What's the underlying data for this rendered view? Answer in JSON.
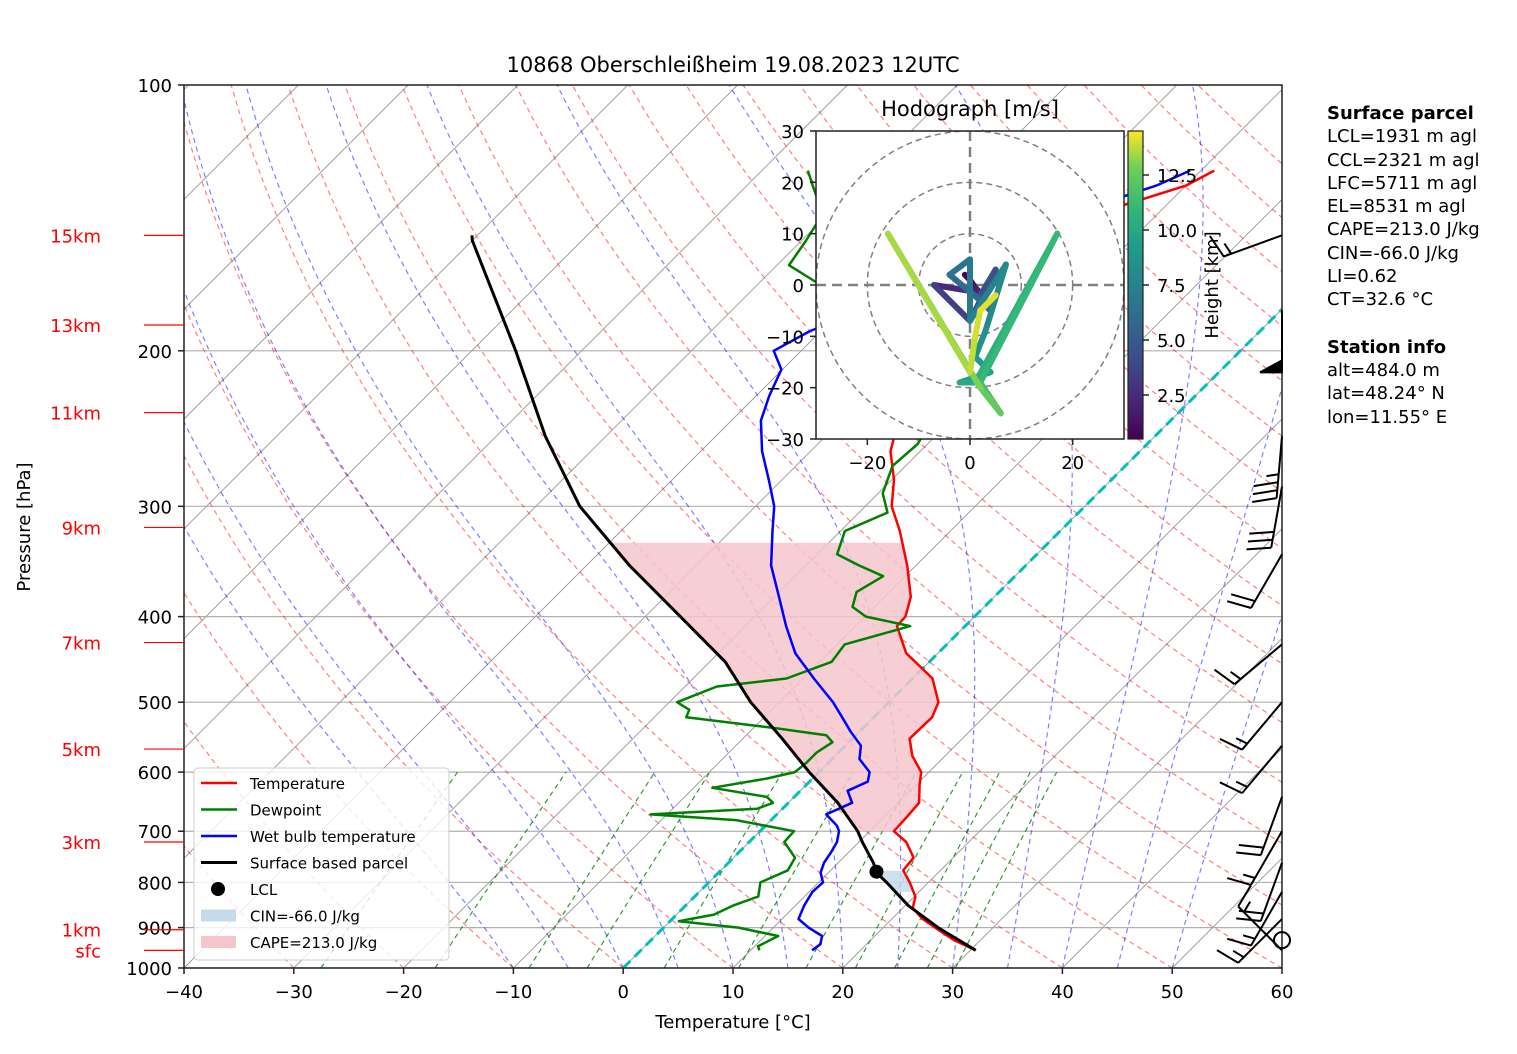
{
  "chart_data": {
    "type": "skew-t",
    "title": "10868 Oberschleißheim 19.08.2023 12UTC",
    "xlabel": "Temperature [°C]",
    "ylabel": "Pressure [hPa]",
    "xlim": [
      -40,
      60
    ],
    "ylim": [
      1000,
      100
    ],
    "xticks": [
      -40,
      -30,
      -20,
      -10,
      0,
      10,
      20,
      30,
      40,
      50,
      60
    ],
    "yticks": [
      100,
      200,
      300,
      400,
      500,
      600,
      700,
      800,
      900,
      1000
    ],
    "height_marks": [
      {
        "label": "15km",
        "p": 148
      },
      {
        "label": "13km",
        "p": 187
      },
      {
        "label": "11km",
        "p": 235
      },
      {
        "label": "9km",
        "p": 317
      },
      {
        "label": "7km",
        "p": 428
      },
      {
        "label": "5km",
        "p": 565
      },
      {
        "label": "3km",
        "p": 720
      },
      {
        "label": "1km",
        "p": 905
      },
      {
        "label": "sfc",
        "p": 955
      }
    ],
    "legend": {
      "placement": "lower-left",
      "entries": [
        {
          "label": "Temperature",
          "color": "#ff0000",
          "kind": "line"
        },
        {
          "label": "Dewpoint",
          "color": "#008000",
          "kind": "line"
        },
        {
          "label": "Wet bulb temperature",
          "color": "#0000ff",
          "kind": "line"
        },
        {
          "label": "Surface based parcel",
          "color": "#000000",
          "kind": "line"
        },
        {
          "label": "LCL",
          "color": "#000000",
          "kind": "dot"
        },
        {
          "label": "CIN=-66.0 J/kg",
          "color": "#c6dbe9",
          "kind": "patch"
        },
        {
          "label": "CAPE=213.0 J/kg",
          "color": "#f4c6cc",
          "kind": "patch"
        }
      ]
    },
    "series": [
      {
        "name": "Temperature",
        "color": "#ff0000",
        "points": [
          [
            955,
            30.5
          ],
          [
            930,
            27.6
          ],
          [
            905,
            25.2
          ],
          [
            880,
            22.8
          ],
          [
            855,
            20.9
          ],
          [
            830,
            20.1
          ],
          [
            800,
            18.3
          ],
          [
            775,
            16.6
          ],
          [
            750,
            16.4
          ],
          [
            720,
            14.3
          ],
          [
            700,
            12.2
          ],
          [
            680,
            12.1
          ],
          [
            650,
            11.9
          ],
          [
            620,
            10.3
          ],
          [
            600,
            9.3
          ],
          [
            575,
            7.0
          ],
          [
            550,
            5.2
          ],
          [
            520,
            5.3
          ],
          [
            500,
            4.5
          ],
          [
            470,
            1.8
          ],
          [
            440,
            -2.9
          ],
          [
            410,
            -6.2
          ],
          [
            400,
            -6.3
          ],
          [
            380,
            -7.6
          ],
          [
            350,
            -10.8
          ],
          [
            320,
            -14.6
          ],
          [
            300,
            -17.6
          ],
          [
            280,
            -19.8
          ],
          [
            260,
            -22.7
          ],
          [
            240,
            -24.8
          ],
          [
            225,
            -26.7
          ],
          [
            210,
            -29.7
          ],
          [
            200,
            -33.0
          ],
          [
            190,
            -35.7
          ],
          [
            180,
            -35.5
          ],
          [
            170,
            -36.0
          ],
          [
            160,
            -34.6
          ],
          [
            155,
            -31.0
          ],
          [
            150,
            -28.5
          ],
          [
            140,
            -25.7
          ],
          [
            130,
            -20.0
          ],
          [
            125,
            -18.8
          ]
        ]
      },
      {
        "name": "Dewpoint",
        "color": "#008000",
        "points": [
          [
            955,
            10.8
          ],
          [
            945,
            10.3
          ],
          [
            920,
            11.2
          ],
          [
            900,
            6.8
          ],
          [
            885,
            0.8
          ],
          [
            870,
            3.4
          ],
          [
            850,
            4.3
          ],
          [
            830,
            5.8
          ],
          [
            800,
            4.7
          ],
          [
            775,
            6.1
          ],
          [
            750,
            5.6
          ],
          [
            720,
            3.2
          ],
          [
            700,
            3.1
          ],
          [
            680,
            -3.2
          ],
          [
            670,
            -11.5
          ],
          [
            660,
            -2.3
          ],
          [
            650,
            -1.4
          ],
          [
            640,
            -2.5
          ],
          [
            625,
            -8.3
          ],
          [
            610,
            -4.1
          ],
          [
            600,
            -2.2
          ],
          [
            585,
            -2.0
          ],
          [
            570,
            -2.0
          ],
          [
            555,
            -1.5
          ],
          [
            545,
            -2.7
          ],
          [
            535,
            -8.0
          ],
          [
            520,
            -17.1
          ],
          [
            510,
            -17.5
          ],
          [
            500,
            -19.3
          ],
          [
            480,
            -17.1
          ],
          [
            470,
            -11.5
          ],
          [
            450,
            -8.9
          ],
          [
            430,
            -9.3
          ],
          [
            410,
            -5.0
          ],
          [
            400,
            -9.9
          ],
          [
            390,
            -12.0
          ],
          [
            375,
            -13.0
          ],
          [
            360,
            -12.0
          ],
          [
            350,
            -15.2
          ],
          [
            340,
            -18.2
          ],
          [
            320,
            -19.6
          ],
          [
            305,
            -17.4
          ],
          [
            290,
            -19.6
          ],
          [
            270,
            -21.2
          ],
          [
            255,
            -20.9
          ],
          [
            240,
            -21.8
          ],
          [
            230,
            -26.6
          ],
          [
            210,
            -27.6
          ],
          [
            200,
            -30.6
          ],
          [
            190,
            -30.1
          ],
          [
            180,
            -36.6
          ],
          [
            170,
            -43.4
          ],
          [
            160,
            -48.9
          ],
          [
            150,
            -49.6
          ],
          [
            140,
            -50.5
          ],
          [
            130,
            -54.0
          ],
          [
            125,
            -55.8
          ]
        ]
      },
      {
        "name": "Wet bulb temperature",
        "color": "#0000ff",
        "points": [
          [
            955,
            15.6
          ],
          [
            940,
            15.8
          ],
          [
            920,
            15.2
          ],
          [
            900,
            13.2
          ],
          [
            880,
            11.5
          ],
          [
            850,
            10.8
          ],
          [
            820,
            10.3
          ],
          [
            800,
            10.4
          ],
          [
            780,
            9.3
          ],
          [
            760,
            8.7
          ],
          [
            740,
            8.4
          ],
          [
            720,
            8.0
          ],
          [
            700,
            7.2
          ],
          [
            690,
            6.5
          ],
          [
            670,
            4.5
          ],
          [
            650,
            5.8
          ],
          [
            630,
            4.3
          ],
          [
            615,
            5.3
          ],
          [
            600,
            4.6
          ],
          [
            580,
            2.5
          ],
          [
            560,
            1.4
          ],
          [
            540,
            -0.8
          ],
          [
            520,
            -2.9
          ],
          [
            500,
            -5.1
          ],
          [
            470,
            -9.0
          ],
          [
            440,
            -13.0
          ],
          [
            410,
            -16.3
          ],
          [
            380,
            -19.6
          ],
          [
            350,
            -23.2
          ],
          [
            320,
            -26.2
          ],
          [
            300,
            -28.3
          ],
          [
            280,
            -31.2
          ],
          [
            260,
            -34.4
          ],
          [
            240,
            -37.3
          ],
          [
            225,
            -38.8
          ],
          [
            210,
            -40.1
          ],
          [
            200,
            -42.5
          ],
          [
            190,
            -41.0
          ],
          [
            180,
            -38.2
          ],
          [
            170,
            -37.1
          ],
          [
            160,
            -37.5
          ],
          [
            155,
            -33.5
          ],
          [
            150,
            -30.8
          ],
          [
            140,
            -28.0
          ],
          [
            130,
            -22.7
          ],
          [
            125,
            -21.0
          ]
        ]
      },
      {
        "name": "Surface based parcel",
        "color": "#000000",
        "points": [
          [
            955,
            30.5
          ],
          [
            900,
            25.0
          ],
          [
            850,
            20.3
          ],
          [
            800,
            16.2
          ],
          [
            780,
            14.4
          ],
          [
            760,
            13.2
          ],
          [
            720,
            10.3
          ],
          [
            700,
            8.9
          ],
          [
            650,
            4.5
          ],
          [
            600,
            -0.9
          ],
          [
            550,
            -6.4
          ],
          [
            500,
            -12.6
          ],
          [
            450,
            -18.6
          ],
          [
            400,
            -26.8
          ],
          [
            350,
            -36.1
          ],
          [
            300,
            -46.0
          ],
          [
            250,
            -55.5
          ],
          [
            200,
            -66.0
          ],
          [
            150,
            -80.0
          ],
          [
            148,
            -80.5
          ]
        ]
      }
    ],
    "lcl": {
      "p": 778,
      "t": 14.3
    },
    "cape": {
      "value": 213.0,
      "unit": "J/kg"
    },
    "cin": {
      "value": -66.0,
      "unit": "J/kg"
    },
    "dashed_cyan_line": {
      "from": [
        1000,
        0
      ],
      "to": [
        148,
        0
      ],
      "note": "0 °C isotherm"
    },
    "wind_barbs": [
      {
        "p": 955,
        "speed_kt": 15,
        "dir": 315
      },
      {
        "p": 930,
        "speed_kt": 0,
        "dir": 0
      },
      {
        "p": 880,
        "speed_kt": 15,
        "dir": 225
      },
      {
        "p": 820,
        "speed_kt": 15,
        "dir": 210
      },
      {
        "p": 760,
        "speed_kt": 20,
        "dir": 200
      },
      {
        "p": 700,
        "speed_kt": 15,
        "dir": 210
      },
      {
        "p": 640,
        "speed_kt": 20,
        "dir": 200
      },
      {
        "p": 560,
        "speed_kt": 15,
        "dir": 220
      },
      {
        "p": 500,
        "speed_kt": 15,
        "dir": 220
      },
      {
        "p": 430,
        "speed_kt": 15,
        "dir": 230
      },
      {
        "p": 340,
        "speed_kt": 20,
        "dir": 210
      },
      {
        "p": 285,
        "speed_kt": 30,
        "dir": 190
      },
      {
        "p": 250,
        "speed_kt": 35,
        "dir": 185
      },
      {
        "p": 180,
        "speed_kt": 50,
        "dir": 180
      },
      {
        "p": 148,
        "speed_kt": 15,
        "dir": 250
      }
    ],
    "hodograph": {
      "title": "Hodograph [m/s]",
      "xlim": [
        -30,
        30
      ],
      "ylim": [
        -30,
        30
      ],
      "xticks": [
        -20,
        0,
        20
      ],
      "yticks": [
        -30,
        -20,
        -10,
        0,
        10,
        20,
        30
      ],
      "rings": [
        10,
        20,
        30
      ],
      "colorbar": {
        "label": "Height [km]",
        "ticks": [
          2.5,
          5.0,
          7.5,
          10.0,
          12.5
        ],
        "range": [
          0.5,
          14.5
        ],
        "cmap": "viridis"
      },
      "points": [
        {
          "u": -1,
          "v": 2,
          "h": 0.6
        },
        {
          "u": 0,
          "v": 1,
          "h": 1.2
        },
        {
          "u": 1,
          "v": -0.5,
          "h": 1.8
        },
        {
          "u": 2,
          "v": -1.5,
          "h": 2.4
        },
        {
          "u": -7,
          "v": 0,
          "h": 3.5
        },
        {
          "u": 0,
          "v": -7,
          "h": 4.0
        },
        {
          "u": 5,
          "v": 3,
          "h": 4.5
        },
        {
          "u": 2,
          "v": -2,
          "h": 5.0
        },
        {
          "u": 4,
          "v": -5,
          "h": 5.5
        },
        {
          "u": 2,
          "v": -3,
          "h": 6.0
        },
        {
          "u": -4,
          "v": 2,
          "h": 6.5
        },
        {
          "u": 0,
          "v": 5,
          "h": 7.0
        },
        {
          "u": 0,
          "v": -7,
          "h": 7.5
        },
        {
          "u": 7,
          "v": 4,
          "h": 8.0
        },
        {
          "u": 3,
          "v": -9,
          "h": 8.5
        },
        {
          "u": 1,
          "v": -14,
          "h": 9.0
        },
        {
          "u": 4,
          "v": -17,
          "h": 9.5
        },
        {
          "u": -2,
          "v": -19,
          "h": 10.0
        },
        {
          "u": 1,
          "v": -19,
          "h": 10.5
        },
        {
          "u": 17,
          "v": 10,
          "h": 11.0
        },
        {
          "u": 2,
          "v": -19,
          "h": 11.5
        },
        {
          "u": 4,
          "v": -22,
          "h": 12.0
        },
        {
          "u": 6,
          "v": -25,
          "h": 12.5
        },
        {
          "u": 2,
          "v": -20,
          "h": 13.0
        },
        {
          "u": -16,
          "v": 10,
          "h": 13.5
        },
        {
          "u": 0,
          "v": -17,
          "h": 13.8
        },
        {
          "u": 1,
          "v": -10,
          "h": 14.0
        },
        {
          "u": 2,
          "v": -5,
          "h": 14.2
        },
        {
          "u": 5,
          "v": -2,
          "h": 14.4
        }
      ]
    }
  },
  "side_panel": {
    "parcel_heading": "Surface parcel",
    "parcel_lines": [
      "LCL=1931 m agl",
      "CCL=2321 m agl",
      "LFC=5711 m agl",
      "EL=8531 m agl",
      "CAPE=213.0 J/kg",
      "CIN=-66.0 J/kg",
      "LI=0.62",
      "CT=32.6 °C"
    ],
    "station_heading": "Station info",
    "station_lines": [
      "alt=484.0 m",
      "lat=48.24° N",
      "lon=11.55° E"
    ]
  },
  "colors": {
    "temperature": "#ff0000",
    "dewpoint": "#008000",
    "wetbulb": "#0000ff",
    "parcel": "#000000",
    "dry_adiabat": "#ff0000",
    "moist_adiabat": "#0000ff",
    "mixing_ratio": "#008000",
    "isotherm": "#999999",
    "isobar": "#b0b0b0",
    "zero_isotherm": "#00bfbf",
    "cape_fill": "#f4c6cc",
    "cin_fill": "#c6dbe9",
    "height_label": "#ff0000"
  }
}
